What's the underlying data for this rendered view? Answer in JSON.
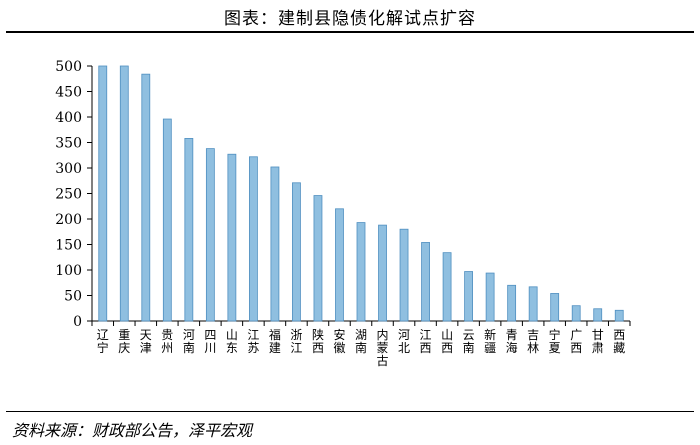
{
  "header": {
    "title": "图表：建制县隐债化解试点扩容"
  },
  "footer": {
    "source": "资料来源：财政部公告，泽平宏观"
  },
  "chart_data": {
    "type": "bar",
    "title": "图表：建制县隐债化解试点扩容",
    "xlabel": "",
    "ylabel": "",
    "ylim": [
      0,
      500
    ],
    "yticks": [
      0,
      50,
      100,
      150,
      200,
      250,
      300,
      350,
      400,
      450,
      500
    ],
    "grid": false,
    "categories": [
      "辽宁",
      "重庆",
      "天津",
      "贵州",
      "河南",
      "四川",
      "山东",
      "江苏",
      "福建",
      "浙江",
      "陕西",
      "安徽",
      "湖南",
      "内蒙古",
      "河北",
      "江西",
      "山西",
      "云南",
      "新疆",
      "青海",
      "吉林",
      "宁夏",
      "广西",
      "甘肃",
      "西藏"
    ],
    "values": [
      500,
      500,
      484,
      396,
      358,
      338,
      327,
      322,
      302,
      271,
      246,
      220,
      193,
      188,
      180,
      154,
      134,
      97,
      94,
      70,
      67,
      54,
      30,
      24,
      21
    ],
    "colors": {
      "bar_fill": "#8fbfe0",
      "bar_stroke": "#4f8fc0",
      "axis": "#000000"
    }
  }
}
